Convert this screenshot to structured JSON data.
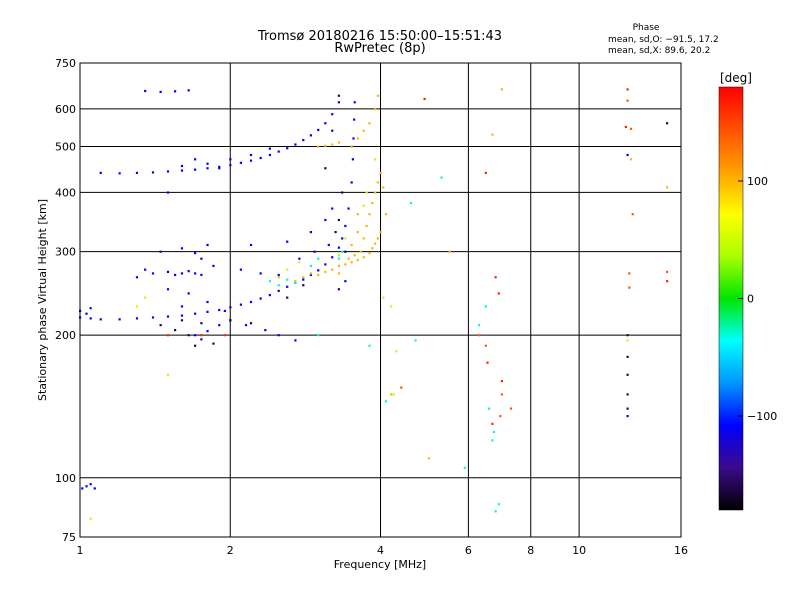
{
  "chart_data": {
    "type": "scatter",
    "title": "Tromsø 20180216 15:50:00–15:51:43",
    "subtitle": "RwPretec (8p)",
    "xlabel": "Frequency [MHz]",
    "ylabel": "Stationary phase Virtual Height [km]",
    "x_scale": "log",
    "y_scale": "log",
    "xlim": [
      1,
      16
    ],
    "ylim": [
      75,
      750
    ],
    "x_ticks": [
      1,
      2,
      4,
      6,
      8,
      10,
      16
    ],
    "y_ticks": [
      75,
      100,
      200,
      300,
      400,
      500,
      600,
      750
    ],
    "grid": true,
    "phase_info": {
      "title": "Phase",
      "line_o": "mean, sd,O: −91.5, 17.2",
      "line_x": "mean, sd,X: 89.6, 20.2"
    },
    "colorbar": {
      "label": "[deg]",
      "range": [
        -180,
        180
      ],
      "ticks": [
        100,
        0,
        -100
      ],
      "colors": [
        "#000000",
        "#3b0a8c",
        "#0000ff",
        "#0096ff",
        "#00ffff",
        "#00e600",
        "#aaff00",
        "#ffff00",
        "#ffa000",
        "#ff5000",
        "#ff0000"
      ]
    },
    "series": [
      {
        "phase": -110,
        "points": [
          [
            1.0,
            218
          ],
          [
            1.05,
            217
          ],
          [
            1.1,
            216
          ],
          [
            1.2,
            216
          ],
          [
            1.3,
            217
          ],
          [
            1.4,
            218
          ],
          [
            1.5,
            219
          ],
          [
            1.6,
            220
          ],
          [
            1.7,
            222
          ],
          [
            1.8,
            224
          ],
          [
            1.9,
            226
          ],
          [
            2.0,
            229
          ],
          [
            2.1,
            232
          ],
          [
            2.2,
            235
          ],
          [
            2.3,
            239
          ],
          [
            2.4,
            243
          ],
          [
            2.5,
            248
          ],
          [
            2.6,
            253
          ],
          [
            2.7,
            258
          ],
          [
            2.8,
            262
          ],
          [
            2.9,
            268
          ],
          [
            3.0,
            274
          ],
          [
            3.1,
            282
          ],
          [
            3.2,
            292
          ],
          [
            3.3,
            306
          ],
          [
            3.35,
            320
          ],
          [
            3.4,
            340
          ],
          [
            3.45,
            370
          ],
          [
            3.5,
            420
          ],
          [
            3.52,
            470
          ],
          [
            3.53,
            520
          ],
          [
            3.54,
            570
          ],
          [
            3.55,
            620
          ],
          [
            1.1,
            440
          ],
          [
            1.2,
            439
          ],
          [
            1.3,
            440
          ],
          [
            1.4,
            441
          ],
          [
            1.5,
            443
          ],
          [
            1.6,
            445
          ],
          [
            1.7,
            447
          ],
          [
            1.8,
            450
          ],
          [
            1.9,
            453
          ],
          [
            2.0,
            457
          ],
          [
            2.1,
            462
          ],
          [
            2.2,
            467
          ],
          [
            2.3,
            473
          ],
          [
            2.4,
            480
          ],
          [
            2.5,
            488
          ],
          [
            2.6,
            496
          ],
          [
            2.7,
            505
          ],
          [
            2.8,
            516
          ],
          [
            2.9,
            528
          ],
          [
            3.0,
            542
          ],
          [
            3.1,
            560
          ],
          [
            3.2,
            585
          ],
          [
            3.3,
            620
          ],
          [
            1.35,
            655
          ],
          [
            1.45,
            652
          ],
          [
            1.55,
            654
          ],
          [
            1.65,
            657
          ],
          [
            1.4,
            270
          ],
          [
            1.5,
            272
          ],
          [
            1.55,
            268
          ],
          [
            1.6,
            270
          ],
          [
            1.65,
            273
          ],
          [
            1.7,
            270
          ],
          [
            1.75,
            268
          ],
          [
            1.45,
            300
          ],
          [
            1.6,
            305
          ],
          [
            1.7,
            298
          ],
          [
            1.8,
            310
          ],
          [
            1.5,
            250
          ],
          [
            1.65,
            245
          ],
          [
            1.8,
            235
          ],
          [
            1.3,
            265
          ],
          [
            1.35,
            275
          ],
          [
            1.75,
            290
          ],
          [
            1.85,
            280
          ],
          [
            2.1,
            275
          ],
          [
            2.3,
            270
          ],
          [
            2.5,
            268
          ],
          [
            2.2,
            310
          ],
          [
            2.6,
            315
          ],
          [
            2.9,
            330
          ],
          [
            3.1,
            350
          ],
          [
            3.2,
            370
          ],
          [
            1.5,
            400
          ],
          [
            1.6,
            455
          ],
          [
            1.7,
            470
          ],
          [
            1.8,
            460
          ],
          [
            1.9,
            450
          ],
          [
            2.0,
            470
          ],
          [
            2.2,
            480
          ],
          [
            2.4,
            495
          ],
          [
            1.01,
            95
          ],
          [
            1.03,
            96
          ],
          [
            1.05,
            97
          ],
          [
            1.07,
            95
          ],
          [
            1.0,
            225
          ],
          [
            1.03,
            222
          ],
          [
            1.05,
            228
          ],
          [
            1.7,
            200
          ],
          [
            1.75,
            196
          ],
          [
            1.8,
            204
          ],
          [
            1.9,
            210
          ],
          [
            2.0,
            215
          ],
          [
            2.7,
            195
          ],
          [
            12.5,
            480
          ],
          [
            12.5,
            135
          ],
          [
            1.6,
            230
          ],
          [
            1.95,
            225
          ],
          [
            2.15,
            210
          ],
          [
            2.35,
            205
          ],
          [
            2.5,
            200
          ],
          [
            2.75,
            290
          ],
          [
            2.95,
            300
          ],
          [
            3.15,
            310
          ],
          [
            3.3,
            250
          ],
          [
            3.4,
            260
          ]
        ]
      },
      {
        "phase": -160,
        "points": [
          [
            1.45,
            210
          ],
          [
            1.55,
            205
          ],
          [
            1.65,
            200
          ],
          [
            1.7,
            190
          ],
          [
            1.85,
            192
          ],
          [
            1.6,
            215
          ],
          [
            1.75,
            212
          ],
          [
            2.0,
            215
          ],
          [
            2.2,
            212
          ],
          [
            3.25,
            330
          ],
          [
            3.3,
            350
          ],
          [
            3.4,
            300
          ],
          [
            3.35,
            400
          ],
          [
            12.5,
            200
          ],
          [
            12.5,
            180
          ],
          [
            12.5,
            165
          ],
          [
            12.5,
            150
          ],
          [
            12.5,
            140
          ],
          [
            15.0,
            560
          ],
          [
            3.1,
            450
          ],
          [
            3.2,
            540
          ],
          [
            3.3,
            640
          ],
          [
            2.6,
            240
          ],
          [
            2.8,
            255
          ]
        ]
      },
      {
        "phase": 100,
        "points": [
          [
            3.3,
            280
          ],
          [
            3.4,
            282
          ],
          [
            3.5,
            285
          ],
          [
            3.6,
            288
          ],
          [
            3.7,
            292
          ],
          [
            3.8,
            298
          ],
          [
            3.85,
            305
          ],
          [
            3.9,
            312
          ],
          [
            3.95,
            320
          ],
          [
            4.0,
            330
          ],
          [
            3.7,
            320
          ],
          [
            3.75,
            340
          ],
          [
            3.8,
            360
          ],
          [
            3.85,
            380
          ],
          [
            3.9,
            400
          ],
          [
            3.95,
            420
          ],
          [
            4.0,
            440
          ],
          [
            3.65,
            300
          ],
          [
            3.55,
            295
          ],
          [
            3.45,
            290
          ],
          [
            3.5,
            310
          ],
          [
            3.6,
            330
          ],
          [
            2.9,
            270
          ],
          [
            3.0,
            268
          ],
          [
            3.1,
            272
          ],
          [
            3.2,
            275
          ],
          [
            3.3,
            270
          ],
          [
            2.7,
            260
          ],
          [
            2.8,
            265
          ],
          [
            2.5,
            265
          ],
          [
            3.5,
            500
          ],
          [
            3.6,
            520
          ],
          [
            3.7,
            540
          ],
          [
            3.8,
            560
          ],
          [
            3.9,
            600
          ],
          [
            3.95,
            640
          ],
          [
            3.0,
            500
          ],
          [
            3.1,
            502
          ],
          [
            3.2,
            505
          ],
          [
            3.3,
            510
          ],
          [
            4.05,
            410
          ],
          [
            4.1,
            360
          ],
          [
            5.5,
            300
          ],
          [
            5.0,
            110
          ],
          [
            7.0,
            660
          ],
          [
            6.7,
            530
          ],
          [
            12.7,
            470
          ],
          [
            15.0,
            410
          ],
          [
            4.2,
            150
          ],
          [
            3.6,
            360
          ]
        ]
      },
      {
        "phase": 45,
        "points": [
          [
            4.2,
            230
          ],
          [
            4.25,
            150
          ],
          [
            4.3,
            185
          ],
          [
            4.05,
            240
          ],
          [
            3.7,
            375
          ],
          [
            3.75,
            400
          ],
          [
            1.3,
            230
          ],
          [
            1.5,
            165
          ],
          [
            12.5,
            195
          ],
          [
            1.05,
            82
          ],
          [
            3.3,
            295
          ],
          [
            3.4,
            320
          ],
          [
            2.6,
            275
          ],
          [
            2.75,
            285
          ],
          [
            1.35,
            240
          ],
          [
            3.9,
            470
          ]
        ]
      },
      {
        "phase": -30,
        "points": [
          [
            2.4,
            260
          ],
          [
            2.5,
            255
          ],
          [
            2.6,
            262
          ],
          [
            2.7,
            258
          ],
          [
            2.9,
            280
          ],
          [
            3.0,
            290
          ],
          [
            3.3,
            290
          ],
          [
            3.35,
            300
          ],
          [
            4.1,
            145
          ],
          [
            4.7,
            195
          ],
          [
            5.3,
            430
          ],
          [
            6.6,
            140
          ],
          [
            6.7,
            120
          ],
          [
            6.75,
            125
          ],
          [
            6.9,
            88
          ],
          [
            5.9,
            105
          ],
          [
            6.8,
            85
          ],
          [
            6.5,
            230
          ],
          [
            3.0,
            200
          ],
          [
            3.8,
            190
          ],
          [
            4.6,
            380
          ],
          [
            6.3,
            210
          ]
        ]
      },
      {
        "phase": 165,
        "points": [
          [
            4.9,
            630
          ],
          [
            6.5,
            440
          ],
          [
            12.4,
            550
          ],
          [
            12.5,
            660
          ],
          [
            1.75,
            200
          ],
          [
            1.95,
            200
          ],
          [
            1.5,
            200
          ],
          [
            15.0,
            260
          ],
          [
            6.55,
            175
          ],
          [
            6.7,
            130
          ],
          [
            6.8,
            265
          ],
          [
            6.9,
            245
          ],
          [
            7.0,
            160
          ]
        ]
      },
      {
        "phase": 140,
        "points": [
          [
            12.7,
            545
          ],
          [
            12.8,
            360
          ],
          [
            12.6,
            270
          ],
          [
            12.6,
            252
          ],
          [
            15.0,
            272
          ],
          [
            7.3,
            140
          ],
          [
            6.95,
            135
          ],
          [
            7.0,
            150
          ],
          [
            6.5,
            190
          ],
          [
            6.3,
            200
          ],
          [
            4.4,
            155
          ],
          [
            12.5,
            625
          ]
        ]
      }
    ]
  }
}
